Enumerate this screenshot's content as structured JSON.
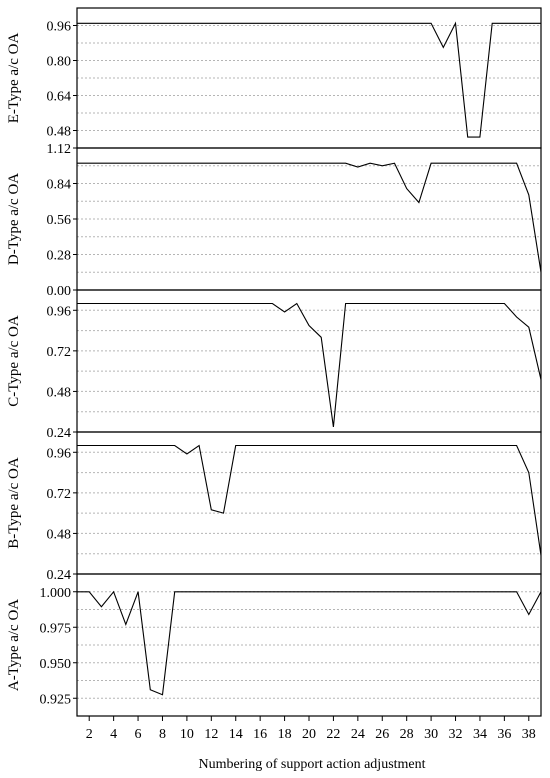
{
  "chart_data": [
    {
      "type": "line",
      "ylabel": "E-Type a/c OA",
      "ylim": [
        0.4,
        1.04
      ],
      "yticks": [
        0.48,
        0.64,
        0.8,
        0.96
      ],
      "ytick_labels": [
        "0.48",
        "0.64",
        "0.80",
        "0.96"
      ],
      "grid": "horizontal-dotted",
      "x": [
        1,
        2,
        3,
        4,
        5,
        6,
        7,
        8,
        9,
        10,
        11,
        12,
        13,
        14,
        15,
        16,
        17,
        18,
        19,
        20,
        21,
        22,
        23,
        24,
        25,
        26,
        27,
        28,
        29,
        30,
        31,
        32,
        33,
        34,
        35,
        36,
        37,
        38,
        39
      ],
      "values": [
        0.97,
        0.97,
        0.97,
        0.97,
        0.97,
        0.97,
        0.97,
        0.97,
        0.97,
        0.97,
        0.97,
        0.97,
        0.97,
        0.97,
        0.97,
        0.97,
        0.97,
        0.97,
        0.97,
        0.97,
        0.97,
        0.97,
        0.97,
        0.97,
        0.97,
        0.97,
        0.97,
        0.97,
        0.97,
        0.97,
        0.86,
        0.97,
        0.45,
        0.45,
        0.97,
        0.97,
        0.97,
        0.97,
        0.97
      ]
    },
    {
      "type": "line",
      "ylabel": "D-Type a/c OA",
      "ylim": [
        0.0,
        1.12
      ],
      "yticks": [
        0.0,
        0.28,
        0.56,
        0.84,
        1.12
      ],
      "ytick_labels": [
        "0.00",
        "0.28",
        "0.56",
        "0.84",
        "1.12"
      ],
      "grid": "horizontal-dotted",
      "x": [
        1,
        2,
        3,
        4,
        5,
        6,
        7,
        8,
        9,
        10,
        11,
        12,
        13,
        14,
        15,
        16,
        17,
        18,
        19,
        20,
        21,
        22,
        23,
        24,
        25,
        26,
        27,
        28,
        29,
        30,
        31,
        32,
        33,
        34,
        35,
        36,
        37,
        38,
        39
      ],
      "values": [
        1.0,
        1.0,
        1.0,
        1.0,
        1.0,
        1.0,
        1.0,
        1.0,
        1.0,
        1.0,
        1.0,
        1.0,
        1.0,
        1.0,
        1.0,
        1.0,
        1.0,
        1.0,
        1.0,
        1.0,
        1.0,
        1.0,
        1.0,
        0.97,
        1.0,
        0.98,
        1.0,
        0.8,
        0.69,
        1.0,
        1.0,
        1.0,
        1.0,
        1.0,
        1.0,
        1.0,
        1.0,
        0.75,
        0.14
      ]
    },
    {
      "type": "line",
      "ylabel": "C-Type a/c OA",
      "ylim": [
        0.24,
        1.08
      ],
      "yticks": [
        0.24,
        0.48,
        0.72,
        0.96
      ],
      "ytick_labels": [
        "0.24",
        "0.48",
        "0.72",
        "0.96"
      ],
      "grid": "horizontal-dotted",
      "x": [
        1,
        2,
        3,
        4,
        5,
        6,
        7,
        8,
        9,
        10,
        11,
        12,
        13,
        14,
        15,
        16,
        17,
        18,
        19,
        20,
        21,
        22,
        23,
        24,
        25,
        26,
        27,
        28,
        29,
        30,
        31,
        32,
        33,
        34,
        35,
        36,
        37,
        38,
        39
      ],
      "values": [
        1.0,
        1.0,
        1.0,
        1.0,
        1.0,
        1.0,
        1.0,
        1.0,
        1.0,
        1.0,
        1.0,
        1.0,
        1.0,
        1.0,
        1.0,
        1.0,
        1.0,
        0.95,
        1.0,
        0.87,
        0.8,
        0.27,
        1.0,
        1.0,
        1.0,
        1.0,
        1.0,
        1.0,
        1.0,
        1.0,
        1.0,
        1.0,
        1.0,
        1.0,
        1.0,
        1.0,
        0.92,
        0.86,
        0.55
      ]
    },
    {
      "type": "line",
      "ylabel": "B-Type a/c OA",
      "ylim": [
        0.24,
        1.08
      ],
      "yticks": [
        0.24,
        0.48,
        0.72,
        0.96
      ],
      "ytick_labels": [
        "0.24",
        "0.48",
        "0.72",
        "0.96"
      ],
      "grid": "horizontal-dotted",
      "x": [
        1,
        2,
        3,
        4,
        5,
        6,
        7,
        8,
        9,
        10,
        11,
        12,
        13,
        14,
        15,
        16,
        17,
        18,
        19,
        20,
        21,
        22,
        23,
        24,
        25,
        26,
        27,
        28,
        29,
        30,
        31,
        32,
        33,
        34,
        35,
        36,
        37,
        38,
        39
      ],
      "values": [
        1.0,
        1.0,
        1.0,
        1.0,
        1.0,
        1.0,
        1.0,
        1.0,
        1.0,
        0.95,
        1.0,
        0.62,
        0.6,
        1.0,
        1.0,
        1.0,
        1.0,
        1.0,
        1.0,
        1.0,
        1.0,
        1.0,
        1.0,
        1.0,
        1.0,
        1.0,
        1.0,
        1.0,
        1.0,
        1.0,
        1.0,
        1.0,
        1.0,
        1.0,
        1.0,
        1.0,
        1.0,
        0.84,
        0.35
      ]
    },
    {
      "type": "line",
      "ylabel": "A-Type a/c OA",
      "ylim": [
        0.9125,
        1.0125
      ],
      "yticks": [
        0.925,
        0.95,
        0.975,
        1.0
      ],
      "ytick_labels": [
        "0.925",
        "0.950",
        "0.975",
        "1.000"
      ],
      "grid": "horizontal-dotted",
      "x": [
        1,
        2,
        3,
        4,
        5,
        6,
        7,
        8,
        9,
        10,
        11,
        12,
        13,
        14,
        15,
        16,
        17,
        18,
        19,
        20,
        21,
        22,
        23,
        24,
        25,
        26,
        27,
        28,
        29,
        30,
        31,
        32,
        33,
        34,
        35,
        36,
        37,
        38,
        39
      ],
      "values": [
        1.0,
        1.0,
        0.9895,
        1.0,
        0.977,
        1.0,
        0.931,
        0.9275,
        1.0,
        1.0,
        1.0,
        1.0,
        1.0,
        1.0,
        1.0,
        1.0,
        1.0,
        1.0,
        1.0,
        1.0,
        1.0,
        1.0,
        1.0,
        1.0,
        1.0,
        1.0,
        1.0,
        1.0,
        1.0,
        1.0,
        1.0,
        1.0,
        1.0,
        1.0,
        1.0,
        1.0,
        1.0,
        0.984,
        1.0
      ],
      "xticks": [
        2,
        4,
        6,
        8,
        10,
        12,
        14,
        16,
        18,
        20,
        22,
        24,
        26,
        28,
        30,
        32,
        34,
        36,
        38
      ],
      "xtick_labels": [
        "2",
        "4",
        "6",
        "8",
        "10",
        "12",
        "14",
        "16",
        "18",
        "20",
        "22",
        "24",
        "26",
        "28",
        "30",
        "32",
        "34",
        "36",
        "38"
      ],
      "xlim": [
        1,
        39
      ],
      "xlabel": "Numbering of support action adjustment"
    }
  ]
}
